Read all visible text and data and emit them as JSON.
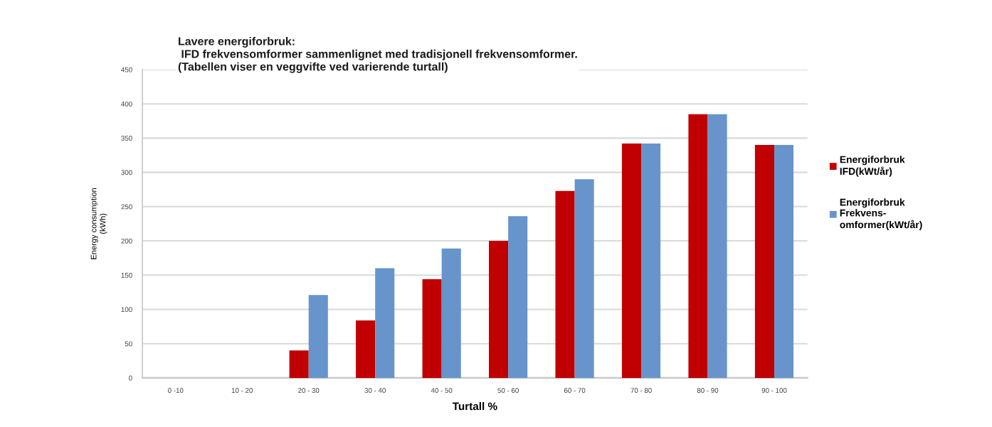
{
  "chart_data": {
    "type": "bar",
    "title": "Lavere energiforbruk:\n IFD frekvensomformer sammenlignet med tradisjonell frekvensomformer.\n(Tabellen viser en veggvifte ved varierende turtall)",
    "xlabel": "Turtall %",
    "ylabel": "Energy consumption\n(kWh)",
    "categories": [
      "0 -10",
      "10 - 20",
      "20 - 30",
      "30 - 40",
      "40 - 50",
      "50 - 60",
      "60 - 70",
      "70 - 80",
      "80 - 90",
      "90 - 100"
    ],
    "series": [
      {
        "name": "Energiforbruk\nIFD(kWt/år)",
        "color": "#c00000",
        "values": [
          null,
          null,
          40,
          84,
          144,
          200,
          273,
          342,
          385,
          340
        ]
      },
      {
        "name": "Energiforbruk\nFrekvens-\nomformer(kWt/år)",
        "color": "#6795cb",
        "values": [
          null,
          null,
          121,
          160,
          189,
          236,
          290,
          342,
          385,
          340
        ]
      }
    ],
    "ylim": [
      0,
      450
    ],
    "yticks": [
      0,
      50,
      100,
      150,
      200,
      250,
      300,
      350,
      400,
      450
    ],
    "grid": "y",
    "legend": "right"
  }
}
